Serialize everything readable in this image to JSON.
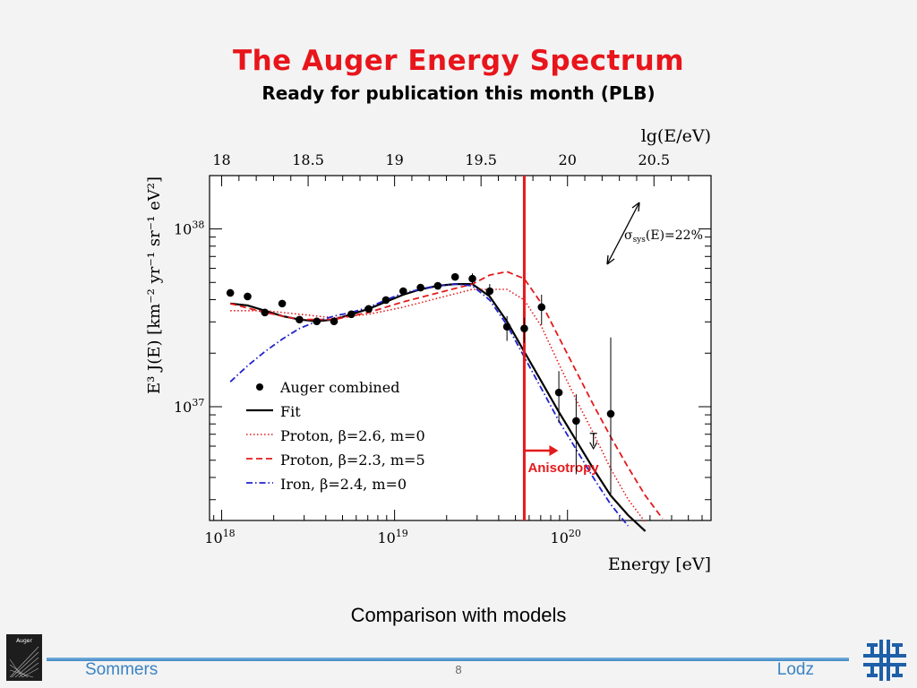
{
  "slide": {
    "title": "The Auger Energy Spectrum",
    "subtitle": "Ready for publication this month (PLB)",
    "caption": "Comparison with models",
    "footer_left": "Sommers",
    "footer_right": "Lodz",
    "page_number": "8",
    "logo_left_text": "Auger",
    "logo_left_icon": "auger-observatory-logo-icon",
    "logo_right_icon": "fermilab-logo-icon",
    "colors": {
      "title": "#e8151b",
      "footer": "#3b83c4",
      "accent_line": "#e41a1c"
    }
  },
  "chart_data": {
    "type": "scatter",
    "xlabel_main": "Energy [eV]",
    "xlabel_top": "lg(E/eV)",
    "ylabel": "E³ J(E) [km⁻² yr⁻¹ sr⁻¹ eV²]",
    "xscale": "log",
    "yscale": "log",
    "xlim_lg": [
      17.93,
      20.83
    ],
    "ylim_lg": [
      36.36,
      38.3
    ],
    "x_ticks": [
      {
        "lg": 18,
        "base": "10",
        "exp": "18"
      },
      {
        "lg": 19,
        "base": "10",
        "exp": "19"
      },
      {
        "lg": 20,
        "base": "10",
        "exp": "20"
      }
    ],
    "top_ticks": [
      {
        "lg": 18,
        "label": "18"
      },
      {
        "lg": 18.5,
        "label": "18.5"
      },
      {
        "lg": 19,
        "label": "19"
      },
      {
        "lg": 19.5,
        "label": "19.5"
      },
      {
        "lg": 20,
        "label": "20"
      },
      {
        "lg": 20.5,
        "label": "20.5"
      }
    ],
    "y_ticks": [
      {
        "lg": 37,
        "base": "10",
        "exp": "37"
      },
      {
        "lg": 38,
        "base": "10",
        "exp": "38"
      }
    ],
    "legend_position": "bottom-left",
    "legend": [
      {
        "series": "auger",
        "label": "Auger combined"
      },
      {
        "series": "fit",
        "label": "Fit"
      },
      {
        "series": "proton1",
        "label": "Proton, β=2.6,  m=0"
      },
      {
        "series": "proton2",
        "label": "Proton, β=2.3,  m=5"
      },
      {
        "series": "iron",
        "label": "Iron,     β=2.4,  m=0"
      }
    ],
    "points": [
      {
        "x": 18.05,
        "y": 37.64,
        "err_up": 0.02,
        "err_dn": 0.02
      },
      {
        "x": 18.15,
        "y": 37.62,
        "err_up": 0.02,
        "err_dn": 0.02
      },
      {
        "x": 18.25,
        "y": 37.53,
        "err_up": 0.02,
        "err_dn": 0.02
      },
      {
        "x": 18.35,
        "y": 37.58,
        "err_up": 0.02,
        "err_dn": 0.02
      },
      {
        "x": 18.45,
        "y": 37.49,
        "err_up": 0.01,
        "err_dn": 0.01
      },
      {
        "x": 18.55,
        "y": 37.48,
        "err_up": 0.01,
        "err_dn": 0.01
      },
      {
        "x": 18.65,
        "y": 37.48,
        "err_up": 0.01,
        "err_dn": 0.01
      },
      {
        "x": 18.75,
        "y": 37.52,
        "err_up": 0.01,
        "err_dn": 0.01
      },
      {
        "x": 18.85,
        "y": 37.55,
        "err_up": 0.01,
        "err_dn": 0.01
      },
      {
        "x": 18.95,
        "y": 37.6,
        "err_up": 0.01,
        "err_dn": 0.01
      },
      {
        "x": 19.05,
        "y": 37.65,
        "err_up": 0.01,
        "err_dn": 0.01
      },
      {
        "x": 19.15,
        "y": 37.67,
        "err_up": 0.01,
        "err_dn": 0.01
      },
      {
        "x": 19.25,
        "y": 37.68,
        "err_up": 0.02,
        "err_dn": 0.02
      },
      {
        "x": 19.35,
        "y": 37.73,
        "err_up": 0.02,
        "err_dn": 0.02
      },
      {
        "x": 19.45,
        "y": 37.72,
        "err_up": 0.03,
        "err_dn": 0.03
      },
      {
        "x": 19.55,
        "y": 37.65,
        "err_up": 0.04,
        "err_dn": 0.04
      },
      {
        "x": 19.65,
        "y": 37.45,
        "err_up": 0.06,
        "err_dn": 0.08
      },
      {
        "x": 19.75,
        "y": 37.44,
        "err_up": 0.06,
        "err_dn": 0.08
      },
      {
        "x": 19.85,
        "y": 37.56,
        "err_up": 0.07,
        "err_dn": 0.1
      },
      {
        "x": 19.95,
        "y": 37.08,
        "err_up": 0.12,
        "err_dn": 0.17
      },
      {
        "x": 20.05,
        "y": 36.92,
        "err_up": 0.15,
        "err_dn": 0.3
      },
      {
        "x": 20.25,
        "y": 36.96,
        "err_up": 0.43,
        "err_dn": 0.45
      }
    ],
    "upper_limit": {
      "x": 20.15,
      "y": 36.85
    },
    "series": [
      {
        "id": "fit",
        "color": "#000000",
        "dash": "",
        "width": 2.2,
        "x": [
          18.05,
          18.15,
          18.25,
          18.35,
          18.45,
          18.55,
          18.65,
          18.75,
          18.85,
          18.95,
          19.05,
          19.15,
          19.25,
          19.35,
          19.45,
          19.55,
          19.65,
          19.75,
          19.85,
          19.95,
          20.05,
          20.15,
          20.25,
          20.35,
          20.45
        ],
        "y": [
          37.58,
          37.57,
          37.54,
          37.51,
          37.49,
          37.48,
          37.49,
          37.52,
          37.55,
          37.59,
          37.63,
          37.66,
          37.68,
          37.69,
          37.69,
          37.62,
          37.48,
          37.31,
          37.14,
          36.97,
          36.81,
          36.65,
          36.5,
          36.39,
          36.3
        ]
      },
      {
        "id": "proton1",
        "color": "#e41a1c",
        "dash": "1.5,2.5",
        "width": 1.6,
        "x": [
          18.05,
          18.25,
          18.45,
          18.65,
          18.85,
          19.05,
          19.25,
          19.45,
          19.65,
          19.75,
          19.85,
          19.95,
          20.05,
          20.15,
          20.25,
          20.35,
          20.45
        ],
        "y": [
          37.54,
          37.54,
          37.52,
          37.5,
          37.52,
          37.56,
          37.61,
          37.66,
          37.66,
          37.6,
          37.45,
          37.24,
          37.04,
          36.85,
          36.65,
          36.48,
          36.35
        ]
      },
      {
        "id": "proton2",
        "color": "#e41a1c",
        "dash": "7,4",
        "width": 1.8,
        "x": [
          18.05,
          18.25,
          18.45,
          18.65,
          18.85,
          19.05,
          19.25,
          19.45,
          19.55,
          19.65,
          19.75,
          19.85,
          19.95,
          20.05,
          20.15,
          20.25,
          20.35,
          20.45,
          20.55
        ],
        "y": [
          37.58,
          37.53,
          37.49,
          37.49,
          37.53,
          37.59,
          37.64,
          37.69,
          37.74,
          37.76,
          37.72,
          37.58,
          37.39,
          37.2,
          37.01,
          36.83,
          36.66,
          36.5,
          36.37
        ]
      },
      {
        "id": "iron",
        "color": "#2222cc",
        "dash": "7,3,1.5,3",
        "width": 1.8,
        "x": [
          18.05,
          18.15,
          18.25,
          18.35,
          18.45,
          18.55,
          18.65,
          18.75,
          18.85,
          18.95,
          19.05,
          19.15,
          19.25,
          19.35,
          19.45,
          19.55,
          19.65,
          19.75,
          19.85,
          19.95,
          20.05,
          20.15,
          20.25,
          20.35
        ],
        "y": [
          37.14,
          37.23,
          37.31,
          37.38,
          37.44,
          37.48,
          37.51,
          37.53,
          37.56,
          37.6,
          37.64,
          37.66,
          37.68,
          37.69,
          37.68,
          37.6,
          37.46,
          37.28,
          37.1,
          36.92,
          36.76,
          36.6,
          36.45,
          36.33
        ]
      }
    ],
    "ankle_line_lg": 19.75,
    "anisotropy_label": "Anisotropy",
    "sigma_annotation": {
      "symbol": "σ",
      "sub": "sys",
      "rest": "(E)=22%"
    }
  }
}
